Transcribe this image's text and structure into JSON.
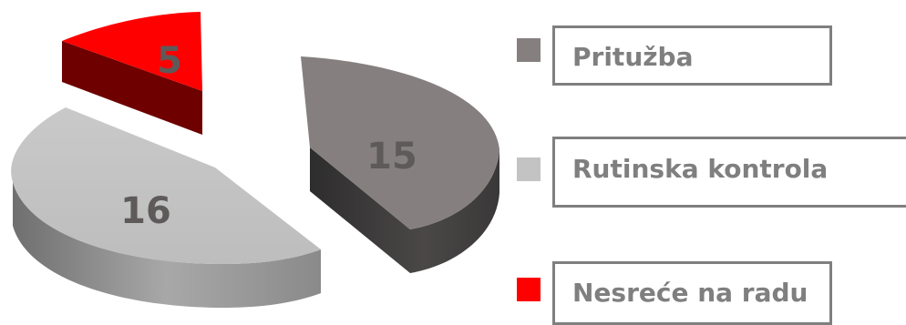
{
  "chart_data": {
    "type": "pie",
    "title": "",
    "slices": [
      {
        "label": "Pritužba",
        "value": 15,
        "color": "#85807f"
      },
      {
        "label": "Rutinska kontrola",
        "value": 16,
        "color": "#c3c3c3"
      },
      {
        "label": "Nesreće na radu",
        "value": 5,
        "color": "#ff0000"
      }
    ],
    "legend": {
      "position": "right"
    },
    "style": "3d-exploded"
  }
}
